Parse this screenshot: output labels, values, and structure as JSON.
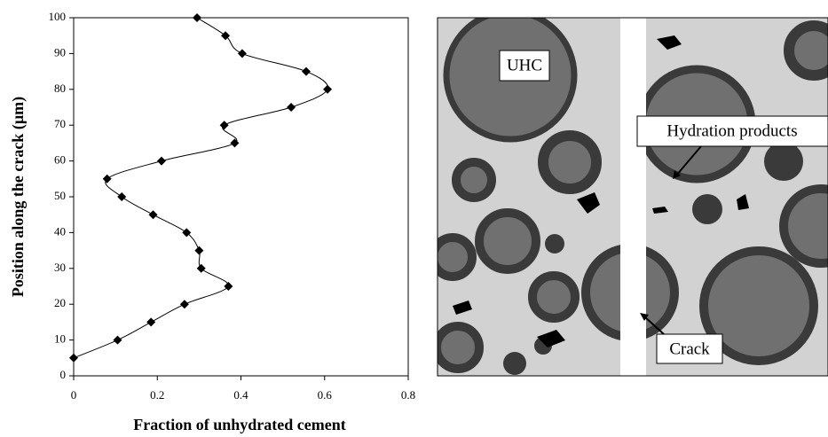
{
  "chart_data": {
    "type": "line",
    "x_label": "Fraction of unhydrated cement",
    "y_label": "Position along the crack (µm)",
    "series": [
      {
        "color": "#000000",
        "x": [
          0.295,
          0.363,
          0.403,
          0.556,
          0.607,
          0.52,
          0.36,
          0.385,
          0.21,
          0.08,
          0.115,
          0.19,
          0.27,
          0.3,
          0.305,
          0.37,
          0.265,
          0.185,
          0.105,
          0.0
        ],
        "values": [
          100,
          95,
          90,
          85,
          80,
          75,
          70,
          65,
          60,
          55,
          50,
          45,
          40,
          35,
          30,
          25,
          20,
          15,
          10,
          5
        ]
      }
    ],
    "xlim": [
      0,
      0.8
    ],
    "xticks": [
      0,
      0.2,
      0.4,
      0.6,
      0.8
    ],
    "ylim": [
      0,
      100
    ],
    "yticks": [
      0,
      10,
      20,
      30,
      40,
      50,
      60,
      70,
      80,
      90,
      100
    ]
  },
  "image": {
    "labels": [
      "UHC",
      "Hydration products",
      "Crack"
    ]
  }
}
